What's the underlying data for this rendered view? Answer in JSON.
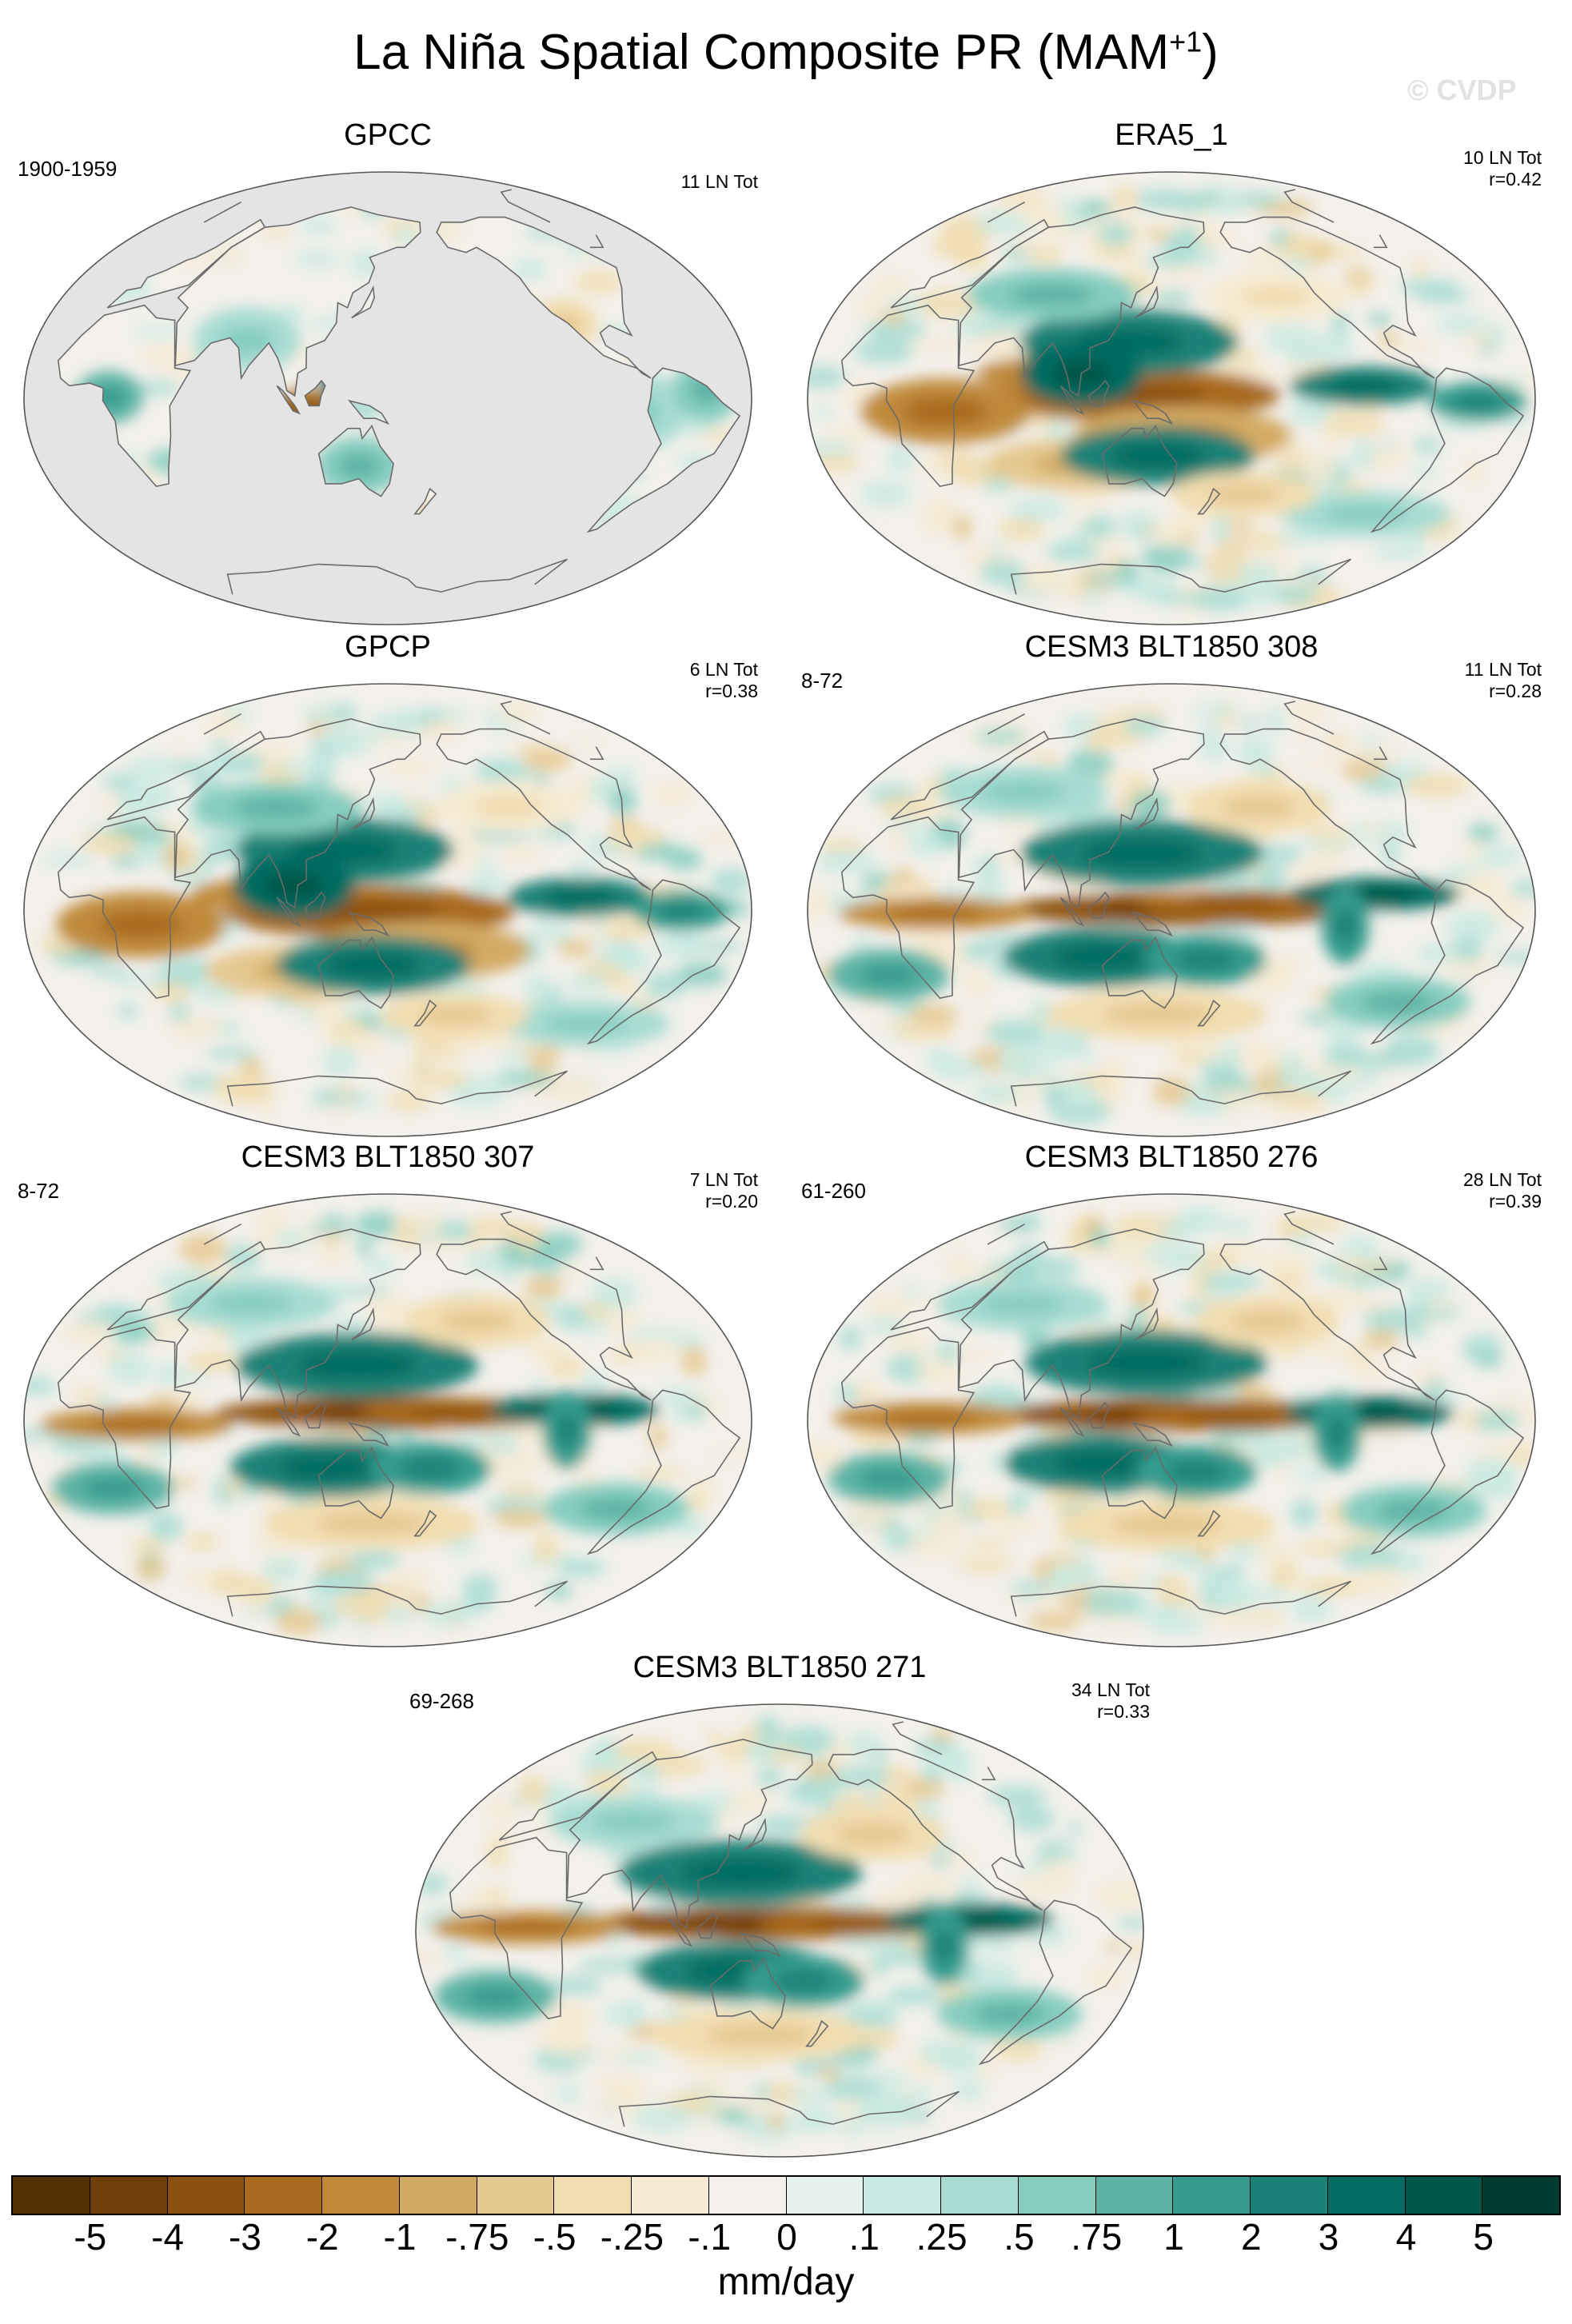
{
  "figure": {
    "title_main": "La Niña Spatial Composite PR (MAM",
    "title_sup": "+1",
    "title_close": ")",
    "watermark": "© CVDP"
  },
  "panels": [
    {
      "id": "gpcc",
      "title": "GPCC",
      "period": "1900-1959",
      "stats_line1": "11 LN Tot",
      "stats_line2": "",
      "land_only": true,
      "pattern": "gpcc"
    },
    {
      "id": "era5",
      "title": "ERA5_1",
      "period": "",
      "stats_line1": "10 LN Tot",
      "stats_line2": "r=0.42",
      "land_only": false,
      "pattern": "obs"
    },
    {
      "id": "gpcp",
      "title": "GPCP",
      "period": "",
      "stats_line1": "6 LN Tot",
      "stats_line2": "r=0.38",
      "land_only": false,
      "pattern": "obs"
    },
    {
      "id": "cesm308",
      "title": "CESM3 BLT1850 308",
      "period": "8-72",
      "stats_line1": "11 LN Tot",
      "stats_line2": "r=0.28",
      "land_only": false,
      "pattern": "model"
    },
    {
      "id": "cesm307",
      "title": "CESM3 BLT1850 307",
      "period": "8-72",
      "stats_line1": "7 LN Tot",
      "stats_line2": "r=0.20",
      "land_only": false,
      "pattern": "model"
    },
    {
      "id": "cesm276",
      "title": "CESM3 BLT1850 276",
      "period": "61-260",
      "stats_line1": "28 LN Tot",
      "stats_line2": "r=0.39",
      "land_only": false,
      "pattern": "model"
    },
    {
      "id": "cesm271",
      "title": "CESM3 BLT1850 271",
      "period": "69-268",
      "stats_line1": "34 LN Tot",
      "stats_line2": "r=0.33",
      "land_only": false,
      "pattern": "model"
    }
  ],
  "colorbar": {
    "colors": [
      "#543005",
      "#6f3e0b",
      "#8c5110",
      "#a86a1f",
      "#c08a3a",
      "#d3aa63",
      "#e5c88f",
      "#f1ddb0",
      "#f6ead2",
      "#f4f1ec",
      "#e5f2ef",
      "#c9eae3",
      "#a8dcd3",
      "#86cdc0",
      "#5db4a6",
      "#369c8f",
      "#1b8277",
      "#036c60",
      "#01564a",
      "#003c30"
    ],
    "tick_labels": [
      "-5",
      "-4",
      "-3",
      "-2",
      "-1",
      "-.75",
      "-.5",
      "-.25",
      "-.1",
      "0",
      ".1",
      ".25",
      ".5",
      ".75",
      "1",
      "2",
      "3",
      "4",
      "5"
    ],
    "units": "mm/day"
  }
}
